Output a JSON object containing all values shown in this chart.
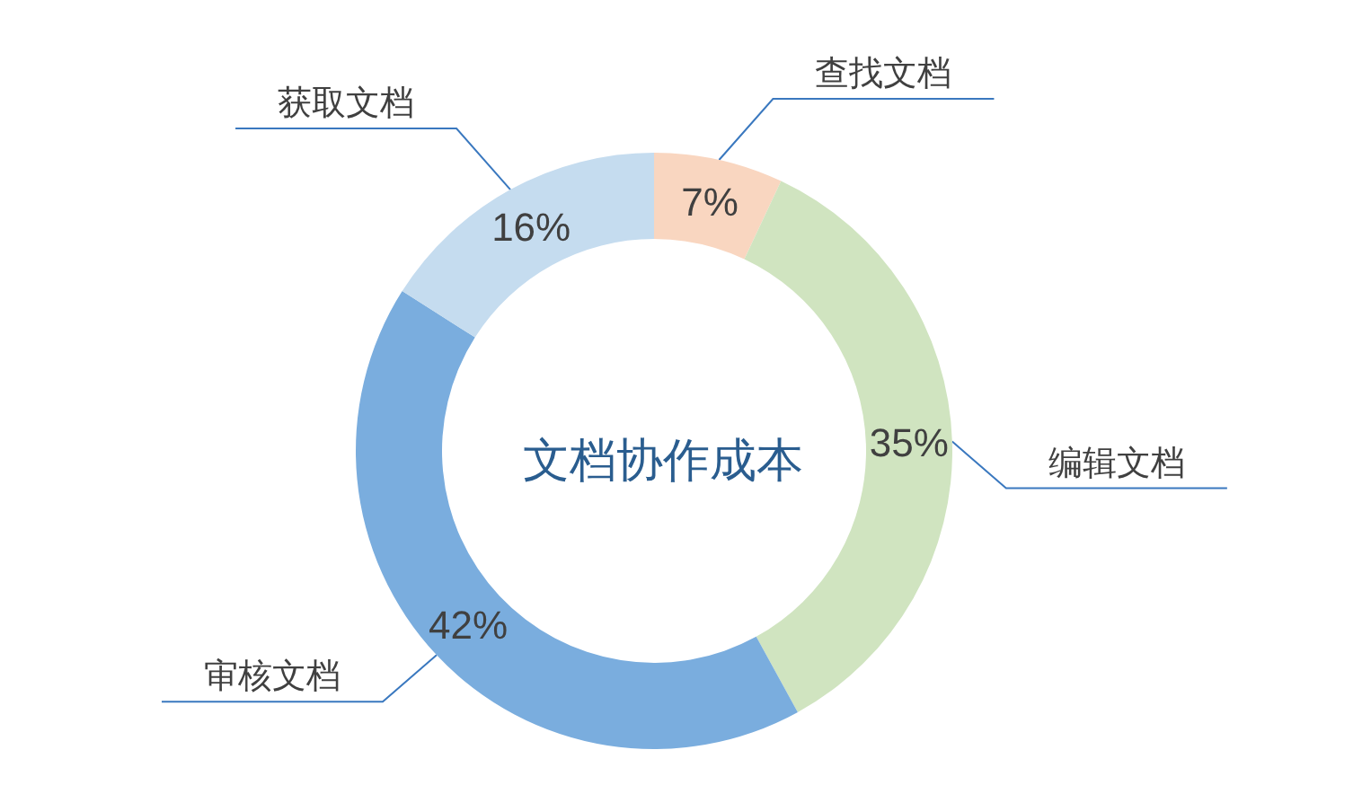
{
  "chart_data": {
    "type": "donut",
    "title": "文档协作成本",
    "categories": [
      "查找文档",
      "编辑文档",
      "审核文档",
      "获取文档"
    ],
    "values": [
      7,
      35,
      42,
      16
    ],
    "colors": [
      "#f9d6c0",
      "#d0e4c0",
      "#7aadde",
      "#c5dcef"
    ],
    "value_labels": [
      "7%",
      "35%",
      "42%",
      "16%"
    ]
  }
}
